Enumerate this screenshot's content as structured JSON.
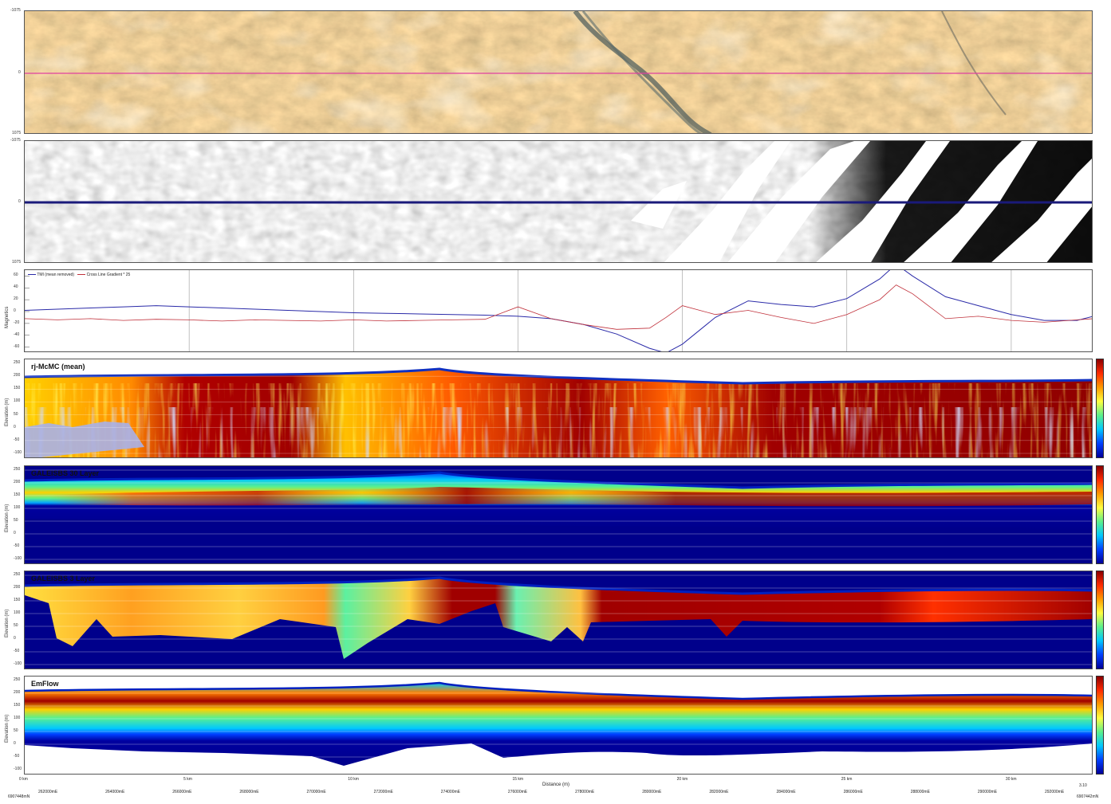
{
  "chart_data": [
    {
      "type": "heatmap",
      "panel": "satellite-image",
      "y_ticks": [
        "-1075",
        "0",
        "1075"
      ]
    },
    {
      "type": "heatmap",
      "panel": "magnetic-image",
      "y_ticks": [
        "-1075",
        "0",
        "1075"
      ]
    },
    {
      "type": "line",
      "ylabel": "Magnetics",
      "y_ticks": [
        "60",
        "40",
        "20",
        "0",
        "-20",
        "-40",
        "-60"
      ],
      "ylim": [
        -70,
        70
      ],
      "xlim": [
        0,
        32.5
      ],
      "x": [
        0,
        1,
        2,
        3,
        4,
        5,
        6,
        7,
        8,
        9,
        10,
        11,
        12,
        13,
        14,
        15,
        16,
        17,
        18,
        19,
        19.5,
        20,
        21,
        22,
        23,
        24,
        25,
        26,
        26.5,
        27,
        28,
        29,
        30,
        31,
        32,
        32.5
      ],
      "series": [
        {
          "name": "TMI (mean removed)",
          "color": "#2a2aa8",
          "values": [
            2,
            4,
            6,
            8,
            10,
            8,
            6,
            4,
            2,
            0,
            -2,
            -3,
            -4,
            -5,
            -6,
            -8,
            -12,
            -22,
            -38,
            -62,
            -70,
            -55,
            -10,
            18,
            12,
            8,
            22,
            55,
            80,
            60,
            25,
            10,
            -5,
            -15,
            -15,
            -8
          ]
        },
        {
          "name": "Cross Line Gradient * 25",
          "color": "#c0303a",
          "values": [
            -12,
            -14,
            -12,
            -15,
            -13,
            -14,
            -16,
            -14,
            -15,
            -16,
            -14,
            -16,
            -15,
            -14,
            -13,
            8,
            -12,
            -22,
            -30,
            -28,
            -10,
            10,
            -5,
            2,
            -10,
            -20,
            -5,
            20,
            45,
            30,
            -12,
            -8,
            -15,
            -18,
            -14,
            -12
          ]
        }
      ]
    },
    {
      "type": "heatmap",
      "title": "rj-McMC (mean)",
      "ylabel": "Elevation (m)",
      "y_ticks": [
        "250",
        "200",
        "150",
        "100",
        "50",
        "0",
        "-50",
        "-100"
      ]
    },
    {
      "type": "heatmap",
      "title": "GALEISBS 30 Layer",
      "ylabel": "Elevation (m)",
      "y_ticks": [
        "250",
        "200",
        "150",
        "100",
        "50",
        "0",
        "-50",
        "-100"
      ]
    },
    {
      "type": "heatmap",
      "title": "GALEISBS 3 Layer",
      "ylabel": "Elevation (m)",
      "y_ticks": [
        "250",
        "200",
        "150",
        "100",
        "50",
        "0",
        "-50",
        "-100"
      ]
    },
    {
      "type": "heatmap",
      "title": "EmFlow",
      "ylabel": "Elevation (m)",
      "y_ticks": [
        "250",
        "200",
        "150",
        "100",
        "50",
        "0",
        "-50",
        "-100"
      ]
    }
  ],
  "x_axis": {
    "xlabel": "Distance (m)",
    "km_ticks": [
      "0 km",
      "5 km",
      "10 km",
      "15 km",
      "20 km",
      "25 km",
      "30 km"
    ],
    "end_tick": "3.10",
    "easting_ticks": [
      "262000mE",
      "264000mE",
      "266000mE",
      "268000mE",
      "270000mE",
      "272000mE",
      "274000mE",
      "276000mE",
      "278000mE",
      "280000mE",
      "282000mE",
      "284000mE",
      "286000mE",
      "288000mE",
      "290000mE",
      "292000mE"
    ],
    "northing_left": "6907448mN",
    "northing_right": "6907442mN"
  },
  "colors": {
    "trace_line_satellite": "#e040a0",
    "trace_line_magnetic": "#1a1a7a",
    "halfspace": "#00008b",
    "conductive": "#8b0000"
  }
}
